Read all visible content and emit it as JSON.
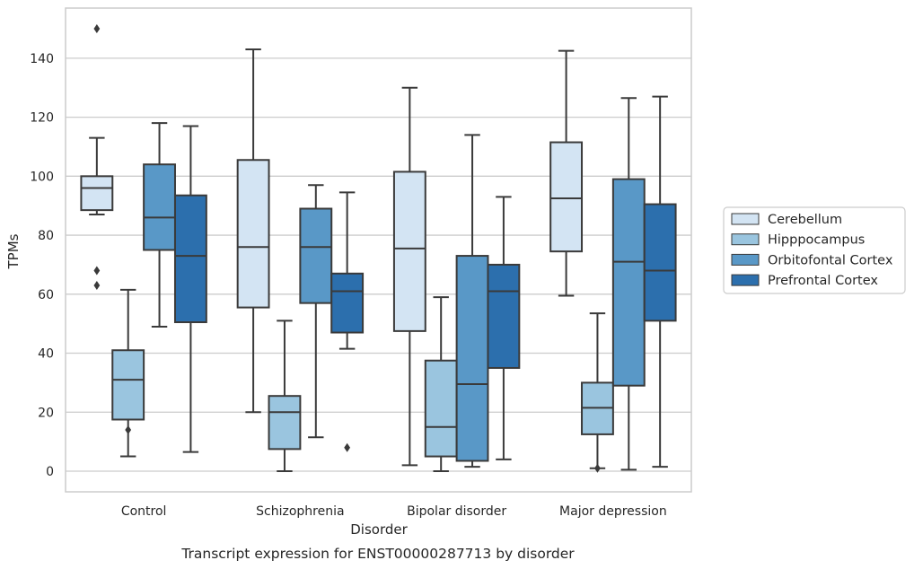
{
  "chart_data": {
    "type": "box",
    "caption": "Transcript expression for ENST00000287713 by disorder",
    "xlabel": "Disorder",
    "ylabel": "TPMs",
    "ylim": [
      -7,
      157
    ],
    "yticks": [
      0,
      20,
      40,
      60,
      80,
      100,
      120,
      140
    ],
    "grid": "horizontal",
    "legend_position": "right",
    "categories": [
      "Control",
      "Schizophrenia",
      "Bipolar disorder",
      "Major depression"
    ],
    "series": [
      {
        "name": "Cerebellum",
        "color": "#d3e4f3",
        "boxes": [
          {
            "whislo": 87,
            "q1": 88.5,
            "med": 96,
            "q3": 100,
            "whishi": 113,
            "fliers": [
              150,
              68,
              63
            ]
          },
          {
            "whislo": 20,
            "q1": 55.5,
            "med": 76,
            "q3": 105.5,
            "whishi": 143,
            "fliers": []
          },
          {
            "whislo": 2,
            "q1": 47.5,
            "med": 75.5,
            "q3": 101.5,
            "whishi": 130,
            "fliers": []
          },
          {
            "whislo": 59.5,
            "q1": 74.5,
            "med": 92.5,
            "q3": 111.5,
            "whishi": 142.5,
            "fliers": []
          }
        ]
      },
      {
        "name": "Hipppocampus",
        "color": "#9ac5df",
        "boxes": [
          {
            "whislo": 5,
            "q1": 17.5,
            "med": 31,
            "q3": 41,
            "whishi": 61.5,
            "fliers": [
              14
            ]
          },
          {
            "whislo": 0,
            "q1": 7.5,
            "med": 20,
            "q3": 25.5,
            "whishi": 51,
            "fliers": []
          },
          {
            "whislo": 0,
            "q1": 5,
            "med": 15,
            "q3": 37.5,
            "whishi": 59,
            "fliers": []
          },
          {
            "whislo": 1,
            "q1": 12.5,
            "med": 21.5,
            "q3": 30,
            "whishi": 53.5,
            "fliers": [
              1
            ]
          }
        ]
      },
      {
        "name": "Orbitofontal Cortex",
        "color": "#5998c7",
        "boxes": [
          {
            "whislo": 49,
            "q1": 75,
            "med": 86,
            "q3": 104,
            "whishi": 118,
            "fliers": []
          },
          {
            "whislo": 11.5,
            "q1": 57,
            "med": 76,
            "q3": 89,
            "whishi": 97,
            "fliers": []
          },
          {
            "whislo": 1.5,
            "q1": 3.5,
            "med": 29.5,
            "q3": 73,
            "whishi": 114,
            "fliers": []
          },
          {
            "whislo": 0.5,
            "q1": 29,
            "med": 71,
            "q3": 99,
            "whishi": 126.5,
            "fliers": []
          }
        ]
      },
      {
        "name": "Prefrontal Cortex",
        "color": "#2c6fad",
        "boxes": [
          {
            "whislo": 6.5,
            "q1": 50.5,
            "med": 73,
            "q3": 93.5,
            "whishi": 117,
            "fliers": []
          },
          {
            "whislo": 41.5,
            "q1": 47,
            "med": 61,
            "q3": 67,
            "whishi": 94.5,
            "fliers": [
              8
            ]
          },
          {
            "whislo": 4,
            "q1": 35,
            "med": 61,
            "q3": 70,
            "whishi": 93,
            "fliers": []
          },
          {
            "whislo": 1.5,
            "q1": 51,
            "med": 68,
            "q3": 90.5,
            "whishi": 127,
            "fliers": []
          }
        ]
      }
    ]
  }
}
